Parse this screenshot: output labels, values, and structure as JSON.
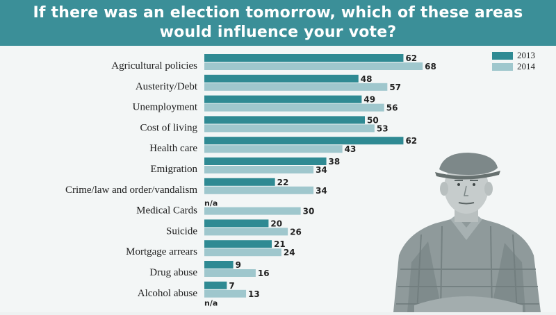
{
  "header": {
    "title_line1": "If there was an election tomorrow, which of these areas",
    "title_line2": "would influence your vote?"
  },
  "colors": {
    "s2013": "#2f8a93",
    "s2014": "#9fc7cd",
    "header": "#3b8f98"
  },
  "chart_data": {
    "type": "bar",
    "orientation": "horizontal",
    "categories": [
      "Agricultural policies",
      "Austerity/Debt",
      "Unemployment",
      "Cost of living",
      "Health care",
      "Emigration",
      "Crime/law and order/vandalism",
      "Medical Cards",
      "Suicide",
      "Mortgage arrears",
      "Drug abuse",
      "Alcohol abuse"
    ],
    "series": [
      {
        "name": "2013",
        "values": [
          62,
          48,
          49,
          50,
          62,
          38,
          22,
          null,
          20,
          21,
          9,
          7
        ]
      },
      {
        "name": "2014",
        "values": [
          68,
          57,
          56,
          53,
          43,
          34,
          34,
          30,
          26,
          24,
          16,
          13
        ]
      }
    ],
    "missing_label": "n/a",
    "trailing_label": "n/a",
    "legend": [
      "2013",
      "2014"
    ],
    "legend_position": "top-right",
    "xlim": [
      0,
      70
    ]
  },
  "icons": {
    "photo": "elderly-man-in-flat-cap-icon"
  }
}
